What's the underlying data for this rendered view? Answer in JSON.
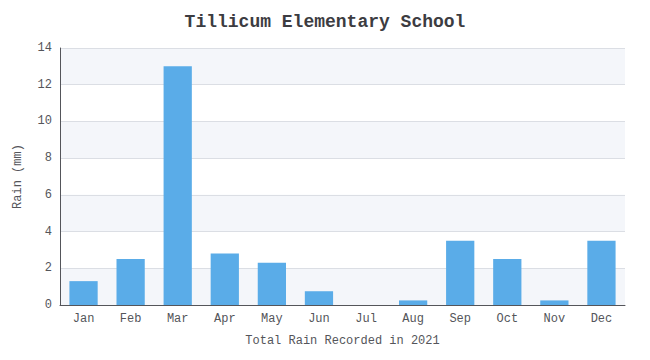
{
  "chart_data": {
    "type": "bar",
    "title": "Tillicum Elementary School",
    "xlabel": "Total Rain Recorded in 2021",
    "ylabel": "Rain (mm)",
    "categories": [
      "Jan",
      "Feb",
      "Mar",
      "Apr",
      "May",
      "Jun",
      "Jul",
      "Aug",
      "Sep",
      "Oct",
      "Nov",
      "Dec"
    ],
    "values": [
      1.3,
      2.5,
      13.0,
      2.8,
      2.3,
      0.75,
      0.0,
      0.25,
      3.5,
      2.5,
      0.25,
      3.5
    ],
    "color": "#5aace8",
    "ylim": [
      0,
      14
    ],
    "yticks": [
      0,
      2,
      4,
      6,
      8,
      10,
      12,
      14
    ],
    "grid": true
  }
}
